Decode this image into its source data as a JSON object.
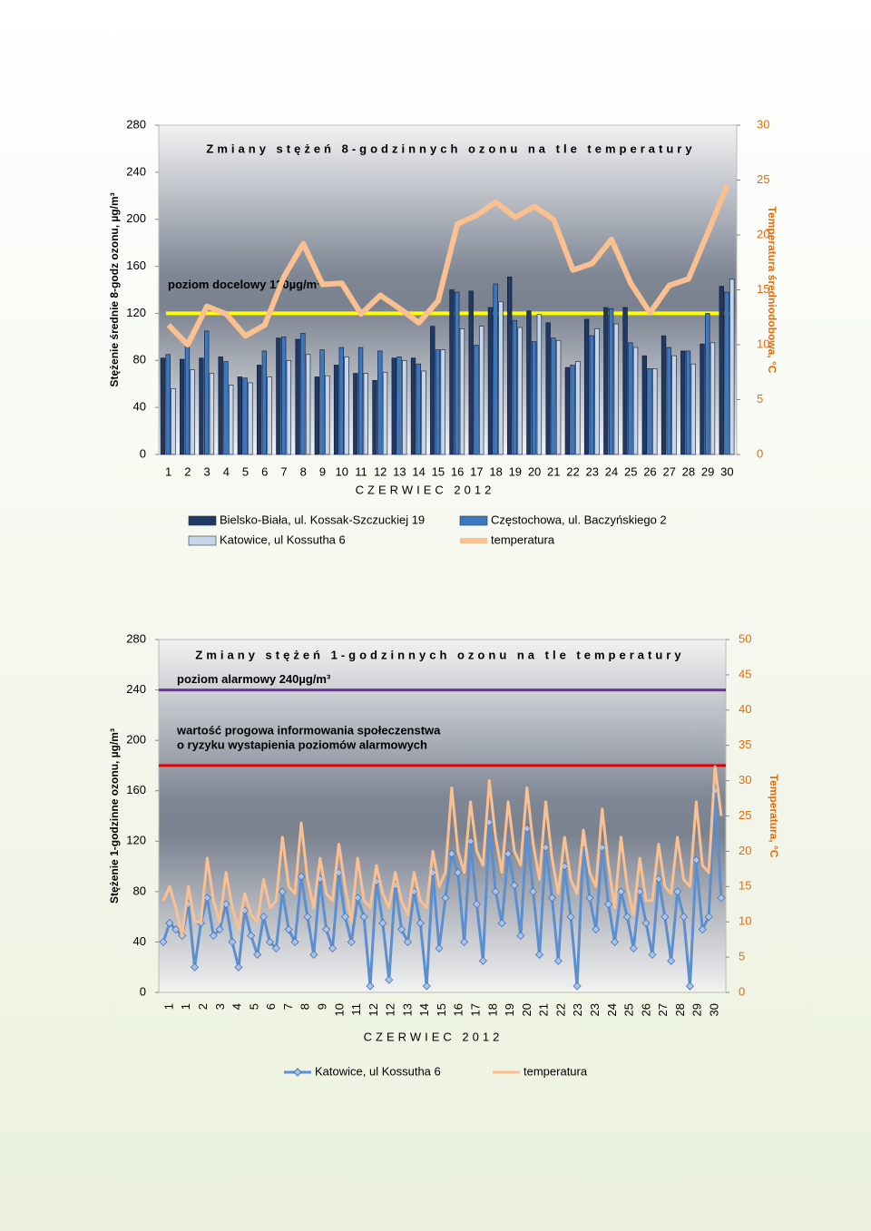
{
  "chart_data": [
    {
      "type": "bar",
      "title": "Zmiany stężeń 8-godzinnych ozonu na tle temperatury",
      "xlabel": "CZERWIEC 2012",
      "ylabel": "Stężenie średnie 8-godz ozonu, µg/m³",
      "y2label": "Temperatura średniodobowa, °C",
      "categories": [
        "1",
        "2",
        "3",
        "4",
        "5",
        "6",
        "7",
        "8",
        "9",
        "10",
        "11",
        "12",
        "13",
        "14",
        "15",
        "16",
        "17",
        "18",
        "19",
        "20",
        "21",
        "22",
        "23",
        "24",
        "25",
        "26",
        "27",
        "28",
        "29",
        "30"
      ],
      "series": [
        {
          "name": "Bielsko-Biała, ul. Kossak-Szczuckiej 19",
          "color": "#1f3864",
          "values": [
            82,
            81,
            82,
            83,
            66,
            76,
            99,
            98,
            66,
            76,
            69,
            63,
            82,
            82,
            109,
            140,
            139,
            125,
            151,
            122,
            112,
            74,
            115,
            125,
            125,
            84,
            101,
            88,
            94,
            143
          ]
        },
        {
          "name": "Częstochowa, ul. Baczyńskiego 2",
          "color": "#3a78c2",
          "values": [
            85,
            96,
            105,
            79,
            65,
            88,
            100,
            103,
            89,
            91,
            91,
            88,
            83,
            77,
            89,
            138,
            93,
            145,
            114,
            96,
            99,
            76,
            101,
            124,
            95,
            73,
            91,
            88,
            120,
            138
          ]
        },
        {
          "name": "Katowice, ul Kossutha 6",
          "color": "#c5d5ea",
          "values": [
            56,
            72,
            69,
            59,
            61,
            66,
            80,
            85,
            67,
            83,
            69,
            70,
            80,
            71,
            89,
            107,
            109,
            130,
            108,
            119,
            97,
            79,
            107,
            111,
            91,
            73,
            84,
            77,
            95,
            149
          ]
        },
        {
          "name": "temperatura",
          "color": "#fac090",
          "type": "line",
          "axis": "y2",
          "values": [
            11.8,
            10.0,
            13.5,
            12.8,
            10.8,
            11.8,
            16.2,
            19.2,
            15.5,
            15.6,
            12.8,
            14.5,
            13.3,
            12.0,
            14.0,
            21.0,
            21.8,
            23.0,
            21.6,
            22.6,
            21.4,
            16.8,
            17.4,
            19.6,
            15.6,
            12.9,
            15.4,
            16.0,
            20.2,
            24.5
          ]
        }
      ],
      "ylim": [
        0,
        280
      ],
      "yticks": [
        0,
        40,
        80,
        120,
        160,
        200,
        240,
        280
      ],
      "y2lim": [
        0,
        30
      ],
      "y2ticks": [
        0,
        5,
        10,
        15,
        20,
        25,
        30
      ],
      "thresholds": [
        {
          "value": 120,
          "label": "poziom docelowy 120µg/m³",
          "color": "#ffff00"
        }
      ]
    },
    {
      "type": "line",
      "title": "Zmiany stężeń 1-godzinnych ozonu na tle temperatury",
      "xlabel": "CZERWIEC 2012",
      "ylabel": "Stężenie 1-godzinne ozonu, µg/m³",
      "y2label": "Temperatura, °C",
      "xtick_labels": [
        "1",
        "1",
        "2",
        "3",
        "4",
        "5",
        "6",
        "7",
        "8",
        "9",
        "10",
        "11",
        "12",
        "12",
        "13",
        "14",
        "15",
        "16",
        "17",
        "18",
        "19",
        "20",
        "21",
        "22",
        "23",
        "23",
        "24",
        "25",
        "26",
        "27",
        "28",
        "29",
        "30"
      ],
      "series": [
        {
          "name": "Katowice, ul Kossutha 6",
          "color": "#5b8fd0",
          "values": [
            40,
            55,
            50,
            45,
            70,
            20,
            55,
            75,
            45,
            50,
            70,
            40,
            20,
            65,
            45,
            30,
            60,
            40,
            35,
            80,
            50,
            40,
            92,
            60,
            30,
            90,
            50,
            35,
            95,
            60,
            40,
            75,
            60,
            5,
            88,
            55,
            10,
            85,
            50,
            40,
            80,
            55,
            5,
            95,
            35,
            75,
            110,
            95,
            40,
            120,
            70,
            25,
            135,
            80,
            55,
            110,
            85,
            45,
            130,
            80,
            30,
            115,
            75,
            25,
            100,
            60,
            5,
            118,
            75,
            50,
            115,
            70,
            40,
            80,
            60,
            35,
            80,
            55,
            30,
            90,
            60,
            25,
            80,
            60,
            5,
            105,
            50,
            60,
            160,
            75
          ]
        },
        {
          "name": "temperatura",
          "color": "#fac090",
          "axis": "y2",
          "values": [
            13,
            15,
            12,
            8,
            15,
            10,
            10,
            19,
            13,
            10,
            17,
            12,
            9,
            14,
            11,
            10,
            16,
            12,
            13,
            22,
            15,
            14,
            24,
            16,
            12,
            19,
            14,
            13,
            21,
            15,
            10,
            19,
            13,
            12,
            18,
            14,
            12,
            17,
            13,
            11,
            17,
            13,
            12,
            20,
            15,
            17,
            29,
            20,
            17,
            27,
            20,
            18,
            30,
            22,
            17,
            27,
            20,
            18,
            29,
            21,
            16,
            27,
            19,
            14,
            22,
            16,
            14,
            23,
            17,
            15,
            26,
            18,
            12,
            22,
            15,
            11,
            19,
            13,
            13,
            21,
            15,
            14,
            22,
            16,
            15,
            27,
            18,
            17,
            32,
            25
          ]
        }
      ],
      "ylim": [
        0,
        280
      ],
      "yticks": [
        0,
        40,
        80,
        120,
        160,
        200,
        240,
        280
      ],
      "y2lim": [
        0,
        50
      ],
      "y2ticks": [
        0,
        5,
        10,
        15,
        20,
        25,
        30,
        35,
        40,
        45,
        50
      ],
      "thresholds": [
        {
          "value": 240,
          "label": "poziom alarmowy 240µg/m³",
          "color": "#7030a0"
        },
        {
          "value": 180,
          "label": "wartość progowa informowania społeczenstwa",
          "label2": "o ryzyku wystapienia poziomów alarmowych",
          "color": "#e00000"
        }
      ]
    }
  ]
}
